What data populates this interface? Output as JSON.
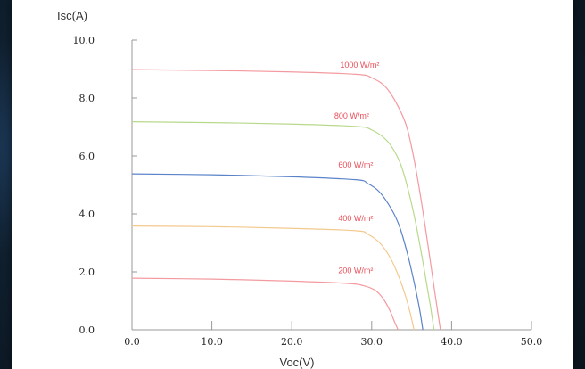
{
  "chart_data": {
    "type": "line",
    "title": "",
    "xlabel": "Voc(V)",
    "ylabel": "Isc(A)",
    "xlim": [
      0,
      50
    ],
    "ylim": [
      0,
      10
    ],
    "x_ticks": [
      "0.0",
      "10.0",
      "20.0",
      "30.0",
      "40.0",
      "50.0"
    ],
    "y_ticks": [
      "0.0",
      "2.0",
      "4.0",
      "6.0",
      "8.0",
      "10.0"
    ],
    "grid": false,
    "series": [
      {
        "name": "1000 W/m²",
        "color": "#f39aa0",
        "x": [
          0,
          10,
          20,
          28,
          30,
          32,
          34,
          35,
          36,
          37,
          38,
          38.6
        ],
        "y": [
          8.98,
          8.95,
          8.9,
          8.82,
          8.7,
          8.3,
          7.3,
          6.3,
          4.8,
          3.0,
          1.1,
          0
        ]
      },
      {
        "name": "800 W/m²",
        "color": "#b8d98c",
        "x": [
          0,
          10,
          20,
          28,
          30,
          32,
          33.5,
          34.5,
          35.5,
          36.5,
          37.3,
          37.8
        ],
        "y": [
          7.18,
          7.15,
          7.1,
          7.02,
          6.9,
          6.5,
          5.8,
          4.9,
          3.7,
          2.2,
          0.9,
          0
        ]
      },
      {
        "name": "600 W/m²",
        "color": "#5b83c9",
        "x": [
          0,
          10,
          20,
          28,
          29.5,
          31,
          32.5,
          33.5,
          34.5,
          35.3,
          36,
          36.4
        ],
        "y": [
          5.38,
          5.35,
          5.28,
          5.18,
          5.05,
          4.75,
          4.15,
          3.55,
          2.6,
          1.65,
          0.7,
          0
        ]
      },
      {
        "name": "400 W/m²",
        "color": "#f3c98e",
        "x": [
          0,
          10,
          20,
          28,
          29.5,
          31,
          32.3,
          33.3,
          34.2,
          34.8,
          35.3
        ],
        "y": [
          3.58,
          3.56,
          3.5,
          3.42,
          3.3,
          3.0,
          2.5,
          1.9,
          1.2,
          0.6,
          0
        ]
      },
      {
        "name": "200 W/m²",
        "color": "#f39aa0",
        "x": [
          0,
          10,
          20,
          27,
          29,
          30.5,
          31.5,
          32.3,
          32.9,
          33.3
        ],
        "y": [
          1.78,
          1.75,
          1.68,
          1.6,
          1.52,
          1.35,
          1.05,
          0.65,
          0.25,
          0
        ]
      }
    ],
    "labels": [
      {
        "text": "1000 W/m²",
        "x": 28.5,
        "y": 9.05,
        "color": "#e8505a"
      },
      {
        "text": "800 W/m²",
        "x": 27.5,
        "y": 7.3,
        "color": "#e8505a"
      },
      {
        "text": "600 W/m²",
        "x": 28,
        "y": 5.6,
        "color": "#e8505a"
      },
      {
        "text": "400 W/m²",
        "x": 28,
        "y": 3.75,
        "color": "#e8505a"
      },
      {
        "text": "200 W/m²",
        "x": 28,
        "y": 1.95,
        "color": "#e8505a"
      }
    ]
  }
}
